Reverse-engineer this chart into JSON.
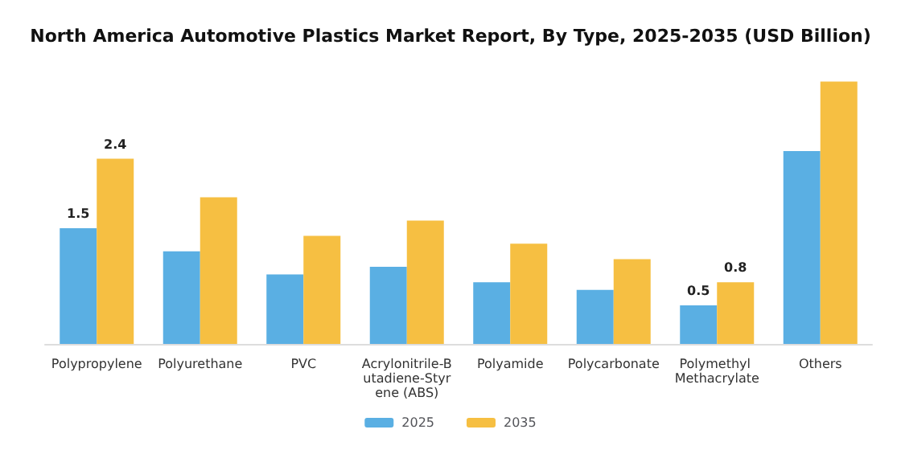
{
  "chart_data": {
    "type": "bar",
    "title": "North America Automotive Plastics Market Report, By Type, 2025-2035 (USD Billion)",
    "categories": [
      "Polypropylene",
      "Polyurethane",
      "PVC",
      "Acrylonitrile-Butadiene-Styrene (ABS)",
      "Polyamide",
      "Polycarbonate",
      "Polymethyl Methacrylate",
      "Others"
    ],
    "series": [
      {
        "name": "2025",
        "color": "#5aafe3",
        "values": [
          1.5,
          1.2,
          0.9,
          1.0,
          0.8,
          0.7,
          0.5,
          2.5
        ],
        "value_labels": [
          "1.5",
          null,
          null,
          null,
          null,
          null,
          "0.5",
          null
        ]
      },
      {
        "name": "2035",
        "color": "#f6bf42",
        "values": [
          2.4,
          1.9,
          1.4,
          1.6,
          1.3,
          1.1,
          0.8,
          3.4
        ],
        "value_labels": [
          "2.4",
          null,
          null,
          null,
          null,
          null,
          "0.8",
          null
        ]
      }
    ],
    "legend": "bottom"
  }
}
